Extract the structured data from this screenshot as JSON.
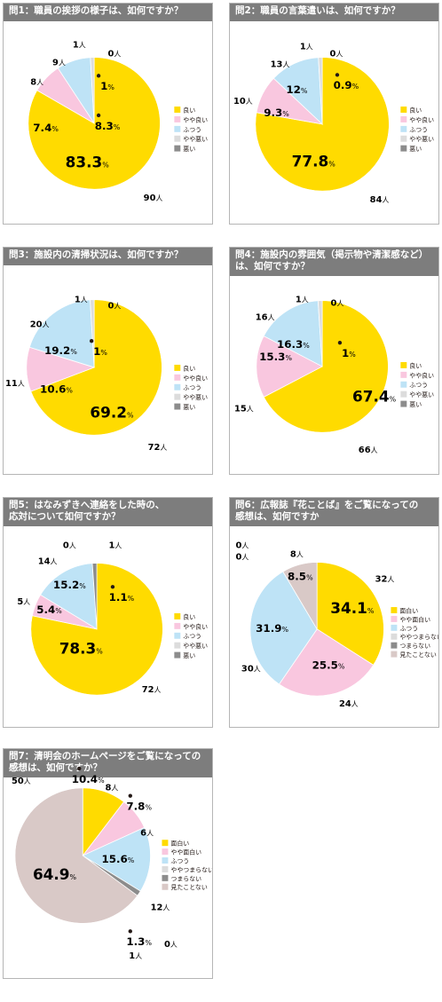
{
  "colors": {
    "good": "#ffdb00",
    "fairly_good": "#f9c7df",
    "normal": "#bee3f6",
    "fairly_bad": "#dcdcdc",
    "bad": "#8c8c8c",
    "never_seen": "#d9c9c7"
  },
  "charts": [
    {
      "title": "問1：職員の挨拶の様子は、如何ですか？",
      "chart_data": {
        "type": "pie",
        "legend": [
          "良い",
          "やや良い",
          "ふつう",
          "やや悪い",
          "悪い"
        ],
        "slices": [
          {
            "label": "良い",
            "percent": "83.3",
            "count": "90",
            "color": "good"
          },
          {
            "label": "やや良い",
            "percent": "7.4",
            "count": "8",
            "color": "fairly_good"
          },
          {
            "label": "ふつう",
            "percent": "8.3",
            "count": "9",
            "color": "normal"
          },
          {
            "label": "やや悪い",
            "percent": "1",
            "count": "1",
            "color": "fairly_bad"
          },
          {
            "label": "悪い",
            "percent": "",
            "count": "0",
            "color": "bad"
          }
        ]
      }
    },
    {
      "title": "問2：職員の言葉遣いは、如何ですか？",
      "chart_data": {
        "type": "pie",
        "legend": [
          "良い",
          "やや良い",
          "ふつう",
          "やや悪い",
          "悪い"
        ],
        "slices": [
          {
            "label": "良い",
            "percent": "77.8",
            "count": "84",
            "color": "good"
          },
          {
            "label": "やや良い",
            "percent": "9.3",
            "count": "10",
            "color": "fairly_good"
          },
          {
            "label": "ふつう",
            "percent": "12",
            "count": "13",
            "color": "normal"
          },
          {
            "label": "やや悪い",
            "percent": "0.9",
            "count": "1",
            "color": "fairly_bad"
          },
          {
            "label": "悪い",
            "percent": "",
            "count": "0",
            "color": "bad"
          }
        ]
      }
    },
    {
      "title": "問3：施設内の清掃状況は、如何ですか？",
      "chart_data": {
        "type": "pie",
        "legend": [
          "良い",
          "やや良い",
          "ふつう",
          "やや悪い",
          "悪い"
        ],
        "slices": [
          {
            "label": "良い",
            "percent": "69.2",
            "count": "72",
            "color": "good"
          },
          {
            "label": "やや良い",
            "percent": "10.6",
            "count": "11",
            "color": "fairly_good"
          },
          {
            "label": "ふつう",
            "percent": "19.2",
            "count": "20",
            "color": "normal"
          },
          {
            "label": "やや悪い",
            "percent": "1",
            "count": "1",
            "color": "fairly_bad"
          },
          {
            "label": "悪い",
            "percent": "",
            "count": "0",
            "color": "bad"
          }
        ]
      }
    },
    {
      "title": "問4：施設内の雰囲気（掲示物や清潔感など）\nは、如何ですか？",
      "chart_data": {
        "type": "pie",
        "legend": [
          "良い",
          "やや良い",
          "ふつう",
          "やや悪い",
          "悪い"
        ],
        "slices": [
          {
            "label": "良い",
            "percent": "67.4",
            "count": "66",
            "color": "good"
          },
          {
            "label": "やや良い",
            "percent": "15.3",
            "count": "15",
            "color": "fairly_good"
          },
          {
            "label": "ふつう",
            "percent": "16.3",
            "count": "16",
            "color": "normal"
          },
          {
            "label": "やや悪い",
            "percent": "1",
            "count": "1",
            "color": "fairly_bad"
          },
          {
            "label": "悪い",
            "percent": "",
            "count": "0",
            "color": "bad"
          }
        ]
      }
    },
    {
      "title": "問5：はなみずきへ連絡をした時の、\n応対について如何ですか？",
      "chart_data": {
        "type": "pie",
        "legend": [
          "良い",
          "やや良い",
          "ふつう",
          "やや悪い",
          "悪い"
        ],
        "slices": [
          {
            "label": "良い",
            "percent": "78.3",
            "count": "72",
            "color": "good"
          },
          {
            "label": "やや良い",
            "percent": "5.4",
            "count": "5",
            "color": "fairly_good"
          },
          {
            "label": "ふつう",
            "percent": "15.2",
            "count": "14",
            "color": "normal"
          },
          {
            "label": "やや悪い",
            "percent": "",
            "count": "0",
            "color": "fairly_bad"
          },
          {
            "label": "悪い",
            "percent": "1.1",
            "count": "1",
            "color": "bad"
          }
        ]
      }
    },
    {
      "title": "問6：広報誌『花ことば』をご覧になっての\n感想は、如何ですか",
      "chart_data": {
        "type": "pie",
        "legend": [
          "面白い",
          "やや面白い",
          "ふつう",
          "ややつまらない",
          "つまらない",
          "見たことない"
        ],
        "slices": [
          {
            "label": "面白い",
            "percent": "34.1",
            "count": "32",
            "color": "good"
          },
          {
            "label": "やや面白い",
            "percent": "25.5",
            "count": "24",
            "color": "fairly_good"
          },
          {
            "label": "ふつう",
            "percent": "31.9",
            "count": "30",
            "color": "normal"
          },
          {
            "label": "ややつまらない",
            "percent": "",
            "count": "0",
            "color": "fairly_bad"
          },
          {
            "label": "つまらない",
            "percent": "",
            "count": "0",
            "color": "bad"
          },
          {
            "label": "見たことない",
            "percent": "8.5",
            "count": "8",
            "color": "never_seen"
          }
        ]
      }
    },
    {
      "title": "問7：清明会のホームページをご覧になっての\n感想は、如何ですか？",
      "chart_data": {
        "type": "pie",
        "legend": [
          "面白い",
          "やや面白い",
          "ふつう",
          "ややつまらない",
          "つまらない",
          "見たことない"
        ],
        "slices": [
          {
            "label": "面白い",
            "percent": "10.4",
            "count": "8",
            "color": "good"
          },
          {
            "label": "やや面白い",
            "percent": "7.8",
            "count": "6",
            "color": "fairly_good"
          },
          {
            "label": "ふつう",
            "percent": "15.6",
            "count": "12",
            "color": "normal"
          },
          {
            "label": "ややつまらない",
            "percent": "",
            "count": "0",
            "color": "fairly_bad"
          },
          {
            "label": "つまらない",
            "percent": "1.3",
            "count": "1",
            "color": "bad"
          },
          {
            "label": "見たことない",
            "percent": "64.9",
            "count": "50",
            "color": "never_seen"
          }
        ]
      }
    }
  ],
  "unit_percent": "%",
  "unit_person": "人"
}
